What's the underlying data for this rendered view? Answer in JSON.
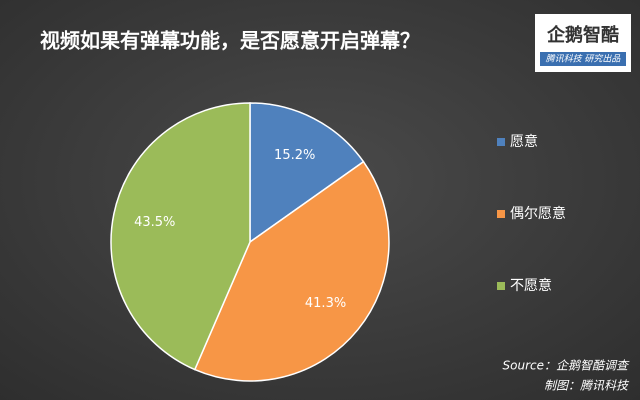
{
  "chart_data": {
    "type": "pie",
    "title": "视频如果有弹幕功能，是否愿意开启弹幕？",
    "categories": [
      "愿意",
      "偶尔愿意",
      "不愿意"
    ],
    "values": [
      15.2,
      41.3,
      43.5
    ],
    "value_labels": [
      "15.2%",
      "41.3%",
      "43.5%"
    ],
    "colors": [
      "#4f81bd",
      "#f79646",
      "#9bbb59"
    ],
    "legend": "right",
    "source": [
      "Source：企鹅智酷调查",
      "制图：腾讯科技"
    ]
  },
  "logo": {
    "title": "企鹅智酷",
    "subtitle": "腾讯科技 研究出品"
  }
}
